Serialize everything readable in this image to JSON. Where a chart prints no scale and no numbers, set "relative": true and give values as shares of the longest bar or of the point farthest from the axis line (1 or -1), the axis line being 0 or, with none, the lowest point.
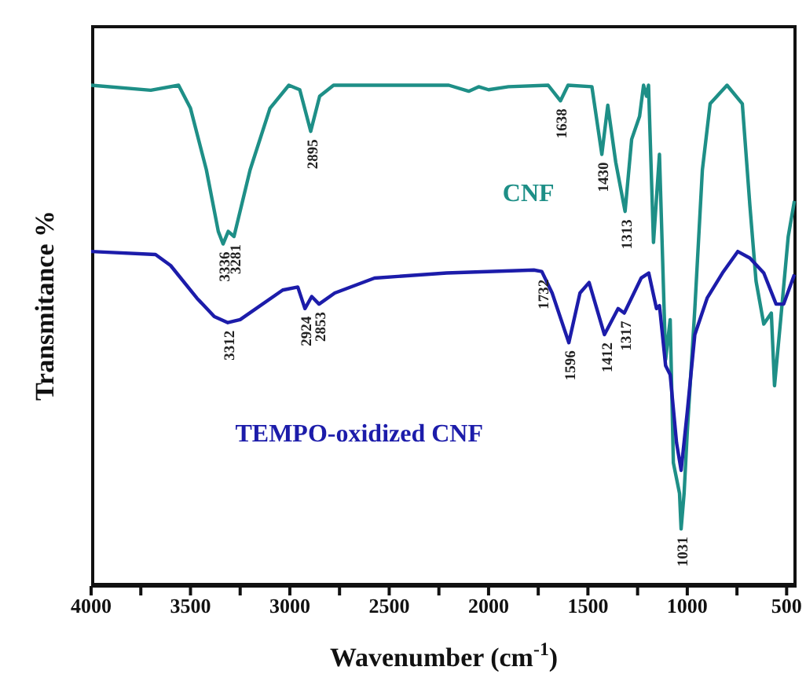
{
  "chart_data": {
    "type": "line",
    "relative": true,
    "xlabel": "Wavenumber (cm$^{-1}$)",
    "ylabel": "Transmitance %",
    "xlim": [
      4000,
      450
    ],
    "xticks": [
      4000,
      {
        "value": 3750,
        "label": null
      },
      3500,
      {
        "value": 3250,
        "label": null
      },
      3000,
      {
        "value": 2750,
        "label": null
      },
      2500,
      {
        "value": 2250,
        "label": null
      },
      2000,
      {
        "value": 1750,
        "label": null
      },
      1500,
      {
        "value": 1250,
        "label": null
      },
      1000,
      {
        "value": 750,
        "label": null
      },
      500
    ],
    "marker": "none",
    "line_style": "solid",
    "tick_labels": "x",
    "series": [
      {
        "name": "CNF",
        "color": "#1e8f87",
        "x": [
          4000,
          3700,
          3560,
          3500,
          3420,
          3360,
          3336,
          3310,
          3281,
          3200,
          3100,
          3005,
          2950,
          2895,
          2850,
          2780,
          2200,
          2100,
          2050,
          2000,
          1900,
          1700,
          1638,
          1600,
          1480,
          1430,
          1400,
          1360,
          1313,
          1280,
          1240,
          1220,
          1205,
          1195,
          1170,
          1140,
          1109,
          1086,
          1070,
          1039,
          1031,
          1016,
          1000,
          962,
          924,
          885,
          800,
          723,
          685,
          654,
          615,
          577,
          561,
          530,
          492,
          461
        ],
        "values": [
          1,
          0.99,
          1,
          0.954,
          0.831,
          0.708,
          0.683,
          0.708,
          0.698,
          0.831,
          0.954,
          1,
          0.991,
          0.908,
          0.978,
          1,
          1,
          0.988,
          0.997,
          0.991,
          0.997,
          1,
          0.969,
          1,
          0.997,
          0.862,
          0.96,
          0.846,
          0.748,
          0.892,
          0.938,
          1,
          0.978,
          1,
          0.686,
          0.862,
          0.452,
          0.532,
          0.246,
          0.185,
          0.114,
          0.185,
          0.308,
          0.554,
          0.831,
          0.963,
          1,
          0.963,
          0.76,
          0.609,
          0.523,
          0.545,
          0.4,
          0.532,
          0.698,
          0.769
        ]
      },
      {
        "name": "TEMPO-oxidized CNF",
        "color": "#1c1caa",
        "x": [
          4000,
          3676,
          3600,
          3468,
          3380,
          3312,
          3250,
          3036,
          2960,
          2924,
          2890,
          2853,
          2774,
          2574,
          2211,
          1772,
          1732,
          1680,
          1596,
          1540,
          1494,
          1417,
          1348,
          1317,
          1232,
          1194,
          1155,
          1140,
          1109,
          1086,
          1054,
          1031,
          1000,
          962,
          900,
          823,
          746,
          685,
          615,
          553,
          515,
          461
        ],
        "values": [
          0.668,
          0.662,
          0.64,
          0.575,
          0.538,
          0.526,
          0.532,
          0.591,
          0.597,
          0.554,
          0.578,
          0.563,
          0.585,
          0.615,
          0.625,
          0.631,
          0.628,
          0.585,
          0.486,
          0.585,
          0.606,
          0.502,
          0.554,
          0.545,
          0.615,
          0.625,
          0.554,
          0.56,
          0.44,
          0.422,
          0.286,
          0.231,
          0.348,
          0.502,
          0.575,
          0.625,
          0.668,
          0.655,
          0.625,
          0.563,
          0.563,
          0.622
        ]
      }
    ],
    "annotations": [
      {
        "text": "3336",
        "x": 3336,
        "y": 0.683
      },
      {
        "text": "3281",
        "x": 3281,
        "y": 0.698
      },
      {
        "text": "2895",
        "x": 2895,
        "y": 0.908
      },
      {
        "text": "1638",
        "x": 1638,
        "y": 0.969
      },
      {
        "text": "1430",
        "x": 1430,
        "y": 0.862
      },
      {
        "text": "1313",
        "x": 1313,
        "y": 0.748
      },
      {
        "text": "1031",
        "x": 1031,
        "y": 0.114
      },
      {
        "text": "3312",
        "x": 3312,
        "y": 0.526
      },
      {
        "text": "2924",
        "x": 2924,
        "y": 0.554
      },
      {
        "text": "2853",
        "x": 2853,
        "y": 0.563
      },
      {
        "text": "1732",
        "x": 1732,
        "y": 0.628
      },
      {
        "text": "1596",
        "x": 1596,
        "y": 0.486
      },
      {
        "text": "1412",
        "x": 1412,
        "y": 0.502
      },
      {
        "text": "1317",
        "x": 1317,
        "y": 0.545
      }
    ]
  }
}
